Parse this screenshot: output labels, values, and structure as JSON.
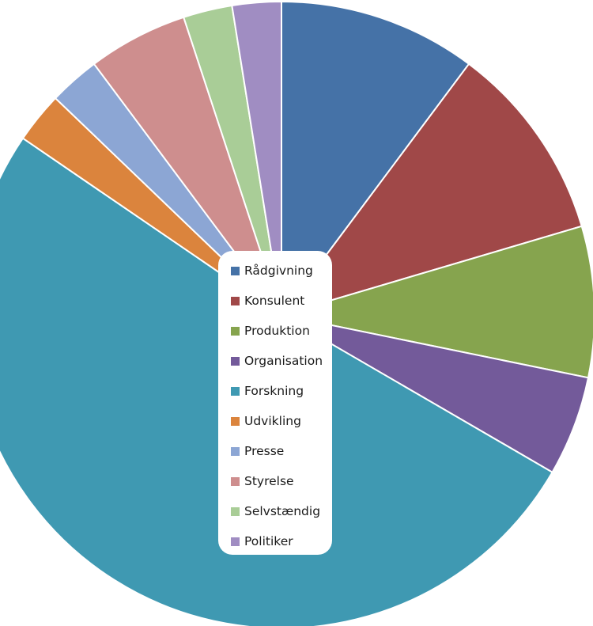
{
  "chart_data": {
    "type": "pie",
    "legend_position": "center",
    "slices": [
      {
        "label": "Rådgivning",
        "value": 10.5,
        "color": "#4572A7"
      },
      {
        "label": "Konsulent",
        "value": 10.5,
        "color": "#A04848"
      },
      {
        "label": "Produktion",
        "value": 8.0,
        "color": "#86A44E"
      },
      {
        "label": "Organisation",
        "value": 5.3,
        "color": "#735A9A"
      },
      {
        "label": "Forskning",
        "value": 52.6,
        "color": "#3F99B2"
      },
      {
        "label": "Udvikling",
        "value": 2.7,
        "color": "#DB843D"
      },
      {
        "label": "Presse",
        "value": 2.7,
        "color": "#8CA6D4"
      },
      {
        "label": "Styrelse",
        "value": 5.3,
        "color": "#CE8E8E"
      },
      {
        "label": "Selvstændig",
        "value": 2.6,
        "color": "#A9CD97"
      },
      {
        "label": "Politiker",
        "value": 2.6,
        "color": "#A08DC2"
      }
    ]
  }
}
